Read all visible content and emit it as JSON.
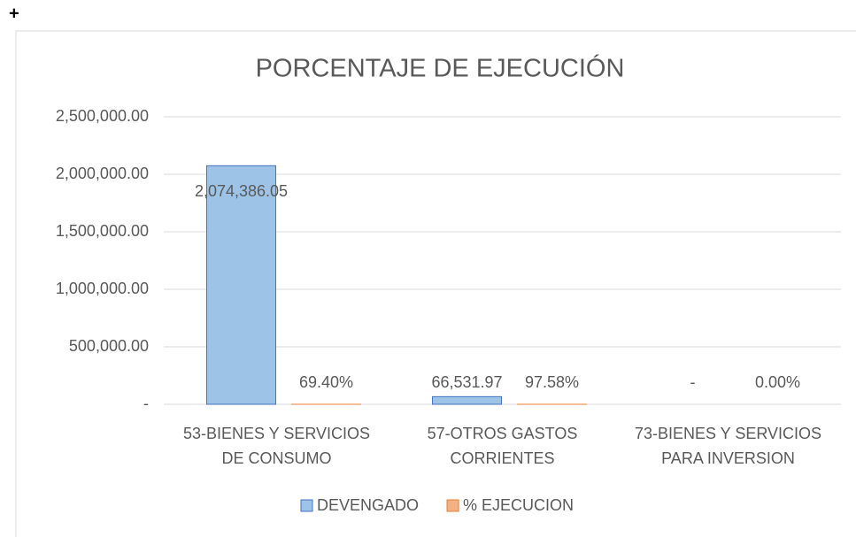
{
  "corner_mark": "+",
  "chart_data": {
    "type": "bar",
    "title": "PORCENTAJE DE EJECUCIÓN",
    "categories": [
      "53-BIENES Y SERVICIOS DE CONSUMO",
      "57-OTROS GASTOS CORRIENTES",
      "73-BIENES Y SERVICIOS PARA INVERSION"
    ],
    "series": [
      {
        "name": "DEVENGADO",
        "color": "#9dc3e6",
        "edge": "#4472c4",
        "values": [
          2074386.05,
          66531.97,
          0
        ],
        "value_labels": [
          "2,074,386.05",
          "66,531.97",
          "-"
        ]
      },
      {
        "name": "% EJECUCION",
        "color": "#f4b183",
        "edge": "#ed7d31",
        "values": [
          69.4,
          97.58,
          0
        ],
        "value_labels": [
          "69.40%",
          "97.58%",
          "0.00%"
        ]
      }
    ],
    "ylim": [
      0,
      2500000
    ],
    "yticks": [
      {
        "value": 0,
        "label": "-"
      },
      {
        "value": 500000,
        "label": "500,000.00"
      },
      {
        "value": 1000000,
        "label": "1,000,000.00"
      },
      {
        "value": 1500000,
        "label": "1,500,000.00"
      },
      {
        "value": 2000000,
        "label": "2,000,000.00"
      },
      {
        "value": 2500000,
        "label": "2,500,000.00"
      }
    ],
    "grid": true,
    "legend": "bottom"
  }
}
